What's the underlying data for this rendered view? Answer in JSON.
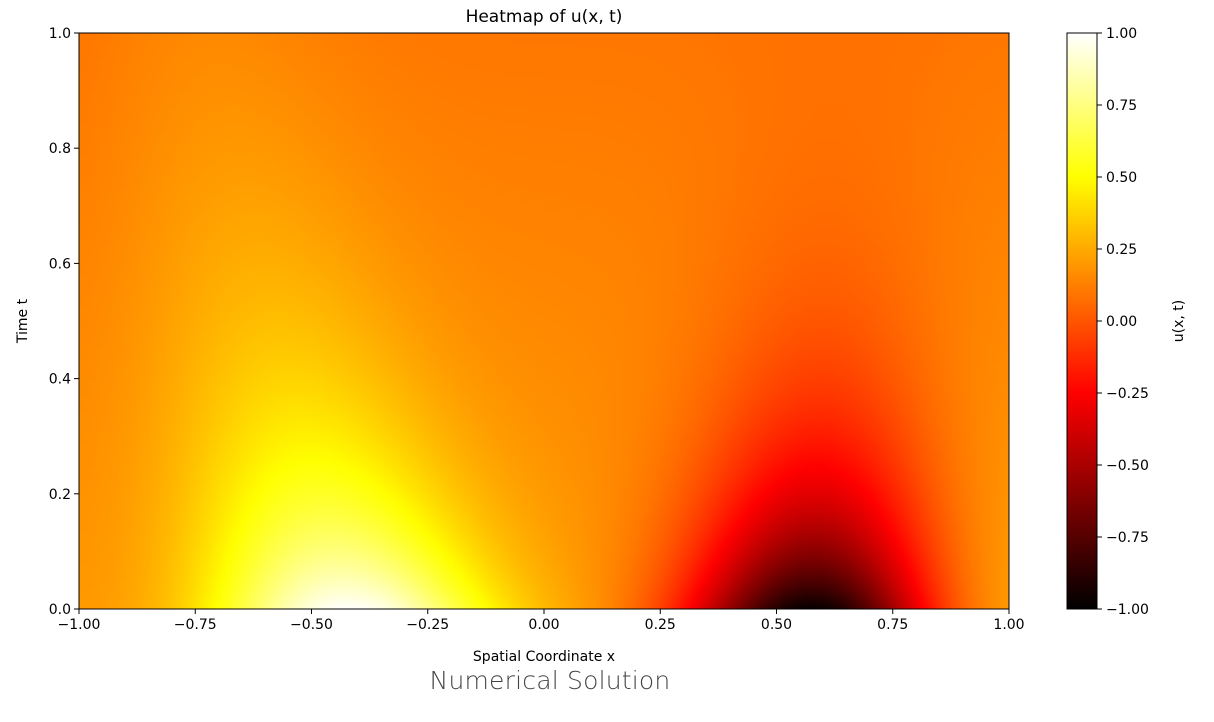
{
  "caption": "Numerical Solution",
  "chart_data": {
    "type": "heatmap",
    "title": "Heatmap of u(x, t)",
    "xlabel": "Spatial Coordinate x",
    "ylabel": "Time t",
    "xlim": [
      -1.0,
      1.0
    ],
    "ylim": [
      0.0,
      1.0
    ],
    "xticks": [
      "−1.00",
      "−0.75",
      "−0.50",
      "−0.25",
      "0.00",
      "0.25",
      "0.50",
      "0.75",
      "1.00"
    ],
    "yticks": [
      "0.0",
      "0.2",
      "0.4",
      "0.6",
      "0.8",
      "1.0"
    ],
    "colormap": "hot",
    "colorbar": {
      "label": "u(x, t)",
      "range": [
        -1.0,
        1.0
      ],
      "ticks": [
        "1.00",
        "0.75",
        "0.50",
        "0.25",
        "0.00",
        "−0.25",
        "−0.50",
        "−0.75",
        "−1.00"
      ]
    },
    "features": [
      {
        "x": -0.5,
        "t": 0.0,
        "value": 1.0
      },
      {
        "x": 0.5,
        "t": 0.0,
        "value": -1.0
      }
    ]
  }
}
